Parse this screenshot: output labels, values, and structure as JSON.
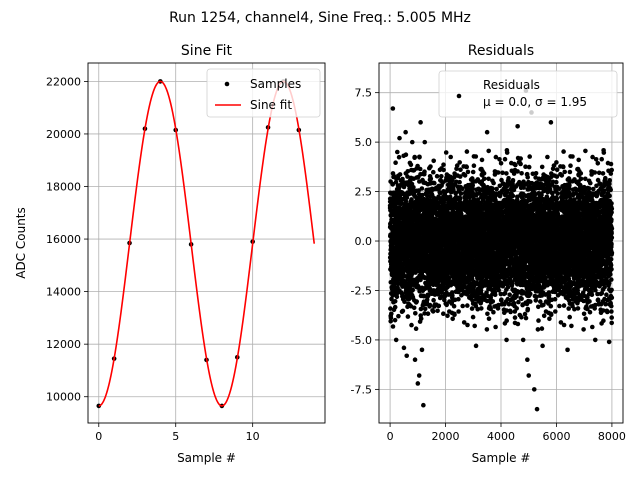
{
  "suptitle": "Run 1254, channel4, Sine Freq.: 5.005 MHz",
  "chart_data": [
    {
      "type": "line",
      "title": "Sine Fit",
      "xlabel": "Sample #",
      "ylabel": "ADC Counts",
      "xlim": [
        -0.7,
        14.7
      ],
      "ylim": [
        9000,
        22700
      ],
      "xticks": [
        0,
        5,
        10
      ],
      "yticks": [
        10000,
        12000,
        14000,
        16000,
        18000,
        20000,
        22000
      ],
      "grid": true,
      "legend_position": "top-right",
      "series": [
        {
          "name": "Samples",
          "style": "dots",
          "color": "#000000",
          "x": [
            0,
            1,
            2,
            3,
            4,
            5,
            6,
            7,
            8,
            9,
            10,
            11,
            12,
            13
          ],
          "y": [
            9650,
            11450,
            15850,
            20200,
            22000,
            20150,
            15800,
            11400,
            9650,
            11500,
            15900,
            20250,
            22000,
            20150
          ]
        },
        {
          "name": "Sine fit",
          "style": "line",
          "color": "#ff0000",
          "function": "sine",
          "offset": 15825,
          "amplitude": 6175,
          "period": 8,
          "phase_peak_x": 4,
          "x_range": [
            0,
            14
          ]
        }
      ]
    },
    {
      "type": "scatter",
      "title": "Residuals",
      "xlabel": "Sample #",
      "ylabel": "",
      "xlim": [
        -400,
        8400
      ],
      "ylim": [
        -9.2,
        9.0
      ],
      "xticks": [
        0,
        2000,
        4000,
        6000,
        8000
      ],
      "yticks": [
        -7.5,
        -5.0,
        -2.5,
        0.0,
        2.5,
        5.0,
        7.5
      ],
      "grid": true,
      "legend_position": "top-right",
      "series": [
        {
          "name": "Residuals",
          "legend_line2": "μ = 0.0, σ = 1.95",
          "style": "dots",
          "color": "#000000",
          "x": [
            100,
            180,
            220,
            260,
            300,
            340,
            500,
            560,
            600,
            800,
            900,
            1000,
            1050,
            1100,
            1150,
            1200,
            1250,
            3100,
            3500,
            4200,
            4600,
            4800,
            4900,
            4950,
            5000,
            5100,
            5200,
            5300,
            5500,
            5800,
            6400,
            7400,
            7900
          ],
          "y": [
            6.7,
            -4.0,
            -5.0,
            4.5,
            -3.8,
            5.2,
            -5.4,
            5.5,
            -5.8,
            5.0,
            -6.0,
            -7.2,
            -6.8,
            6.0,
            -5.5,
            -8.3,
            5.0,
            -5.3,
            5.5,
            -5.0,
            5.8,
            -5.0,
            7.6,
            -6.0,
            -6.8,
            6.5,
            -7.5,
            -8.5,
            -5.3,
            6.0,
            -5.5,
            -5.0,
            -5.1
          ],
          "bulk_sigma": 1.95,
          "bulk_count": 8000
        }
      ]
    }
  ]
}
